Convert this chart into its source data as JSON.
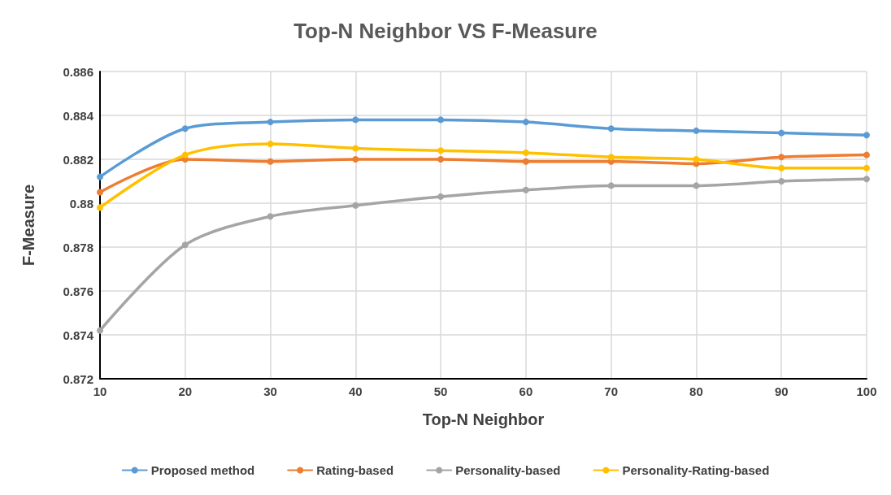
{
  "chart_data": {
    "type": "line",
    "title": "Top-N Neighbor VS F-Measure",
    "xlabel": "Top-N Neighbor",
    "ylabel": "F-Measure",
    "x": [
      10,
      20,
      30,
      40,
      50,
      60,
      70,
      80,
      90,
      100
    ],
    "series": [
      {
        "name": "Proposed method",
        "color": "#5b9bd5",
        "values": [
          0.8812,
          0.8834,
          0.8837,
          0.8838,
          0.8838,
          0.8837,
          0.8834,
          0.8833,
          0.8832,
          0.8831
        ]
      },
      {
        "name": "Rating-based",
        "color": "#ed7d31",
        "values": [
          0.8805,
          0.882,
          0.8819,
          0.882,
          0.882,
          0.8819,
          0.8819,
          0.8818,
          0.8821,
          0.8822
        ]
      },
      {
        "name": "Personality-based",
        "color": "#a5a5a5",
        "values": [
          0.8742,
          0.8781,
          0.8794,
          0.8799,
          0.8803,
          0.8806,
          0.8808,
          0.8808,
          0.881,
          0.8811
        ]
      },
      {
        "name": "Personality-Rating-based",
        "color": "#ffc000",
        "values": [
          0.8798,
          0.8822,
          0.8827,
          0.8825,
          0.8824,
          0.8823,
          0.8821,
          0.882,
          0.8816,
          0.8816
        ]
      }
    ],
    "xlim": [
      10,
      100
    ],
    "xticks": [
      10,
      20,
      30,
      40,
      50,
      60,
      70,
      80,
      90,
      100
    ],
    "ylim": [
      0.872,
      0.886
    ],
    "yticks": [
      0.872,
      0.874,
      0.876,
      0.878,
      0.88,
      0.882,
      0.884,
      0.886
    ],
    "grid": true,
    "legend": "bottom",
    "marker": "circle",
    "line_style": "solid"
  }
}
